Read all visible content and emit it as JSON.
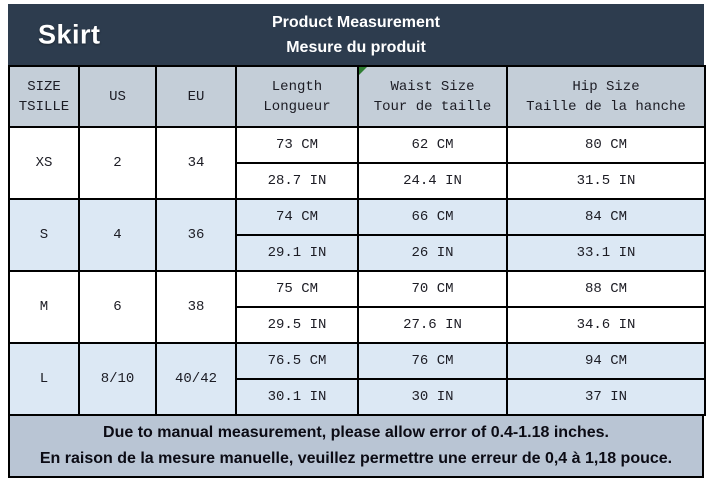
{
  "header": {
    "brand": "Skirt",
    "title_line1": "Product Measurement",
    "title_line2": "Mesure du produit"
  },
  "table": {
    "columns": {
      "size": {
        "en": "SIZE",
        "fr": "TSILLE"
      },
      "us": {
        "en": "US"
      },
      "eu": {
        "en": "EU"
      },
      "length": {
        "en": "Length",
        "fr": "Longueur"
      },
      "waist": {
        "en": "Waist Size",
        "fr": "Tour de taille"
      },
      "hip": {
        "en": "Hip Size",
        "fr": "Taille de la hanche"
      }
    },
    "rows": [
      {
        "size": "XS",
        "us": "2",
        "eu": "34",
        "length_cm": "73 CM",
        "length_in": "28.7 IN",
        "waist_cm": "62 CM",
        "waist_in": "24.4 IN",
        "hip_cm": "80 CM",
        "hip_in": "31.5 IN"
      },
      {
        "size": "S",
        "us": "4",
        "eu": "36",
        "length_cm": "74 CM",
        "length_in": "29.1 IN",
        "waist_cm": "66 CM",
        "waist_in": "26 IN",
        "hip_cm": "84 CM",
        "hip_in": "33.1 IN"
      },
      {
        "size": "M",
        "us": "6",
        "eu": "38",
        "length_cm": "75 CM",
        "length_in": "29.5 IN",
        "waist_cm": "70 CM",
        "waist_in": "27.6 IN",
        "hip_cm": "88 CM",
        "hip_in": "34.6 IN"
      },
      {
        "size": "L",
        "us": "8/10",
        "eu": "40/42",
        "length_cm": "76.5 CM",
        "length_in": "30.1 IN",
        "waist_cm": "76 CM",
        "waist_in": "30 IN",
        "hip_cm": "94 CM",
        "hip_in": "37 IN"
      }
    ]
  },
  "footer": {
    "line1": "Due to manual measurement, please allow error of 0.4-1.18 inches.",
    "line2": "En raison de la mesure manuelle, veuillez permettre une erreur de 0,4 à 1,18 pouce."
  },
  "colors": {
    "band_background": "#2d3c4e",
    "table_header_background": "#c4ced8",
    "row_white": "#ffffff",
    "row_blue": "#dce8f4",
    "footer_background": "#b9c5d4",
    "border": "#000000",
    "marker_green": "#2e7d32",
    "band_text": "#ffffff",
    "table_text": "#1c1c24"
  }
}
